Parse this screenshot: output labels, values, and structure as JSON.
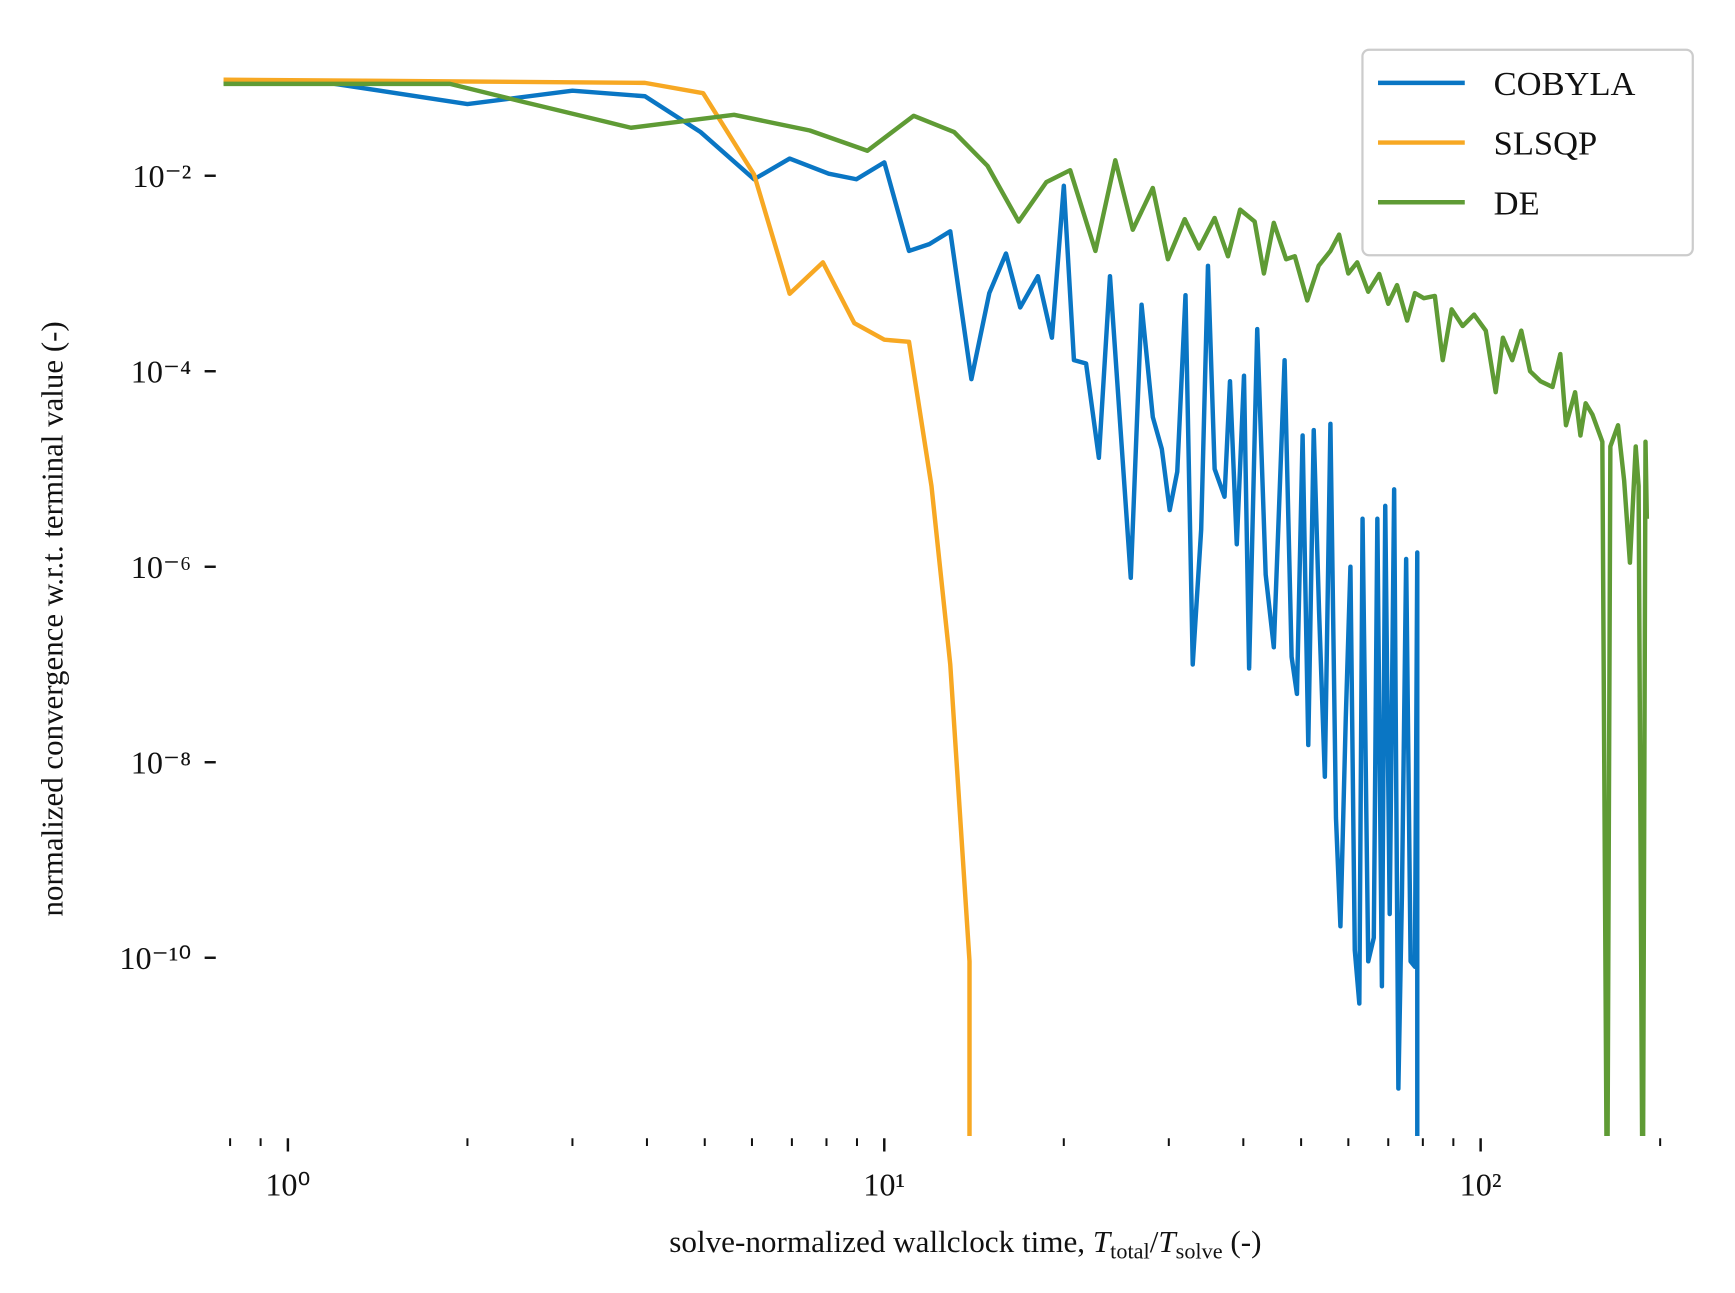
{
  "chart_data": {
    "type": "line",
    "ylabel": "normalized convergence w.r.t. terminal value (-)",
    "xlabel": [
      "solve-normalized wallclock time, ",
      "T",
      "total",
      "/",
      "T",
      "solve",
      " (-)"
    ],
    "xscale": "log",
    "yscale": "log",
    "grid": false,
    "legend": "upper right",
    "xlim": [
      0.78,
      202
    ],
    "ylim": [
      1.5e-12,
      0.125
    ],
    "xticks": [
      {
        "value": 1,
        "label": "10⁰"
      },
      {
        "value": 10,
        "label": "10¹"
      },
      {
        "value": 100,
        "label": "10²"
      }
    ],
    "xminorticks": [
      0.8,
      0.9,
      2,
      3,
      4,
      5,
      6,
      7,
      8,
      9,
      20,
      30,
      40,
      50,
      60,
      70,
      80,
      90,
      200
    ],
    "yticks": [
      {
        "value": 0.01,
        "label": "10⁻²"
      },
      {
        "value": 0.0001,
        "label": "10⁻⁴"
      },
      {
        "value": 1e-06,
        "label": "10⁻⁶"
      },
      {
        "value": 1e-08,
        "label": "10⁻⁸"
      },
      {
        "value": 1e-10,
        "label": "10⁻¹⁰"
      }
    ],
    "series": [
      {
        "name": "COBYLA",
        "color": "#0a76c4",
        "x": [
          0.78,
          1.17,
          2.0,
          3.0,
          3.97,
          4.92,
          6.05,
          6.94,
          8.07,
          8.98,
          10,
          11.0,
          11.9,
          12.9,
          14.0,
          15.0,
          16.0,
          16.9,
          18.1,
          19.1,
          20.0,
          20.8,
          21.8,
          22.9,
          23.9,
          25.9,
          27.0,
          28.2,
          29.2,
          30.1,
          31.0,
          32.0,
          32.9,
          34.0,
          34.9,
          35.8,
          37.2,
          38.0,
          39.0,
          40.1,
          40.9,
          42.2,
          43.6,
          45.0,
          46.9,
          48.2,
          49.2,
          50.3,
          51.4,
          52.5,
          53.6,
          54.8,
          56.0,
          57.2,
          58.2,
          59.4,
          60.5,
          61.5,
          62.6,
          63.4,
          64.8,
          66.2,
          67.1,
          68.3,
          69.2,
          70.4,
          71.6,
          72.8,
          73.8,
          75.0,
          76.3,
          77.6,
          78.3,
          78.3
        ],
        "values": [
          0.089,
          0.089,
          0.054,
          0.074,
          0.065,
          0.028,
          0.0092,
          0.015,
          0.0105,
          0.0092,
          0.0137,
          0.0017,
          0.002,
          0.0027,
          8.3e-05,
          0.00063,
          0.0016,
          0.00045,
          0.00094,
          0.00022,
          0.0079,
          0.00013,
          0.00012,
          1.3e-05,
          0.00094,
          7.7e-07,
          0.00048,
          3.4e-05,
          1.6e-05,
          3.8e-06,
          9.4e-06,
          0.0006,
          1e-07,
          2.4e-06,
          0.0012,
          1e-05,
          5.2e-06,
          7.9e-05,
          1.7e-06,
          9e-05,
          9.1e-08,
          0.00027,
          8.3e-07,
          1.5e-07,
          0.00013,
          1.2e-07,
          5e-08,
          2.2e-05,
          1.5e-08,
          2.5e-05,
          3.5e-07,
          7.1e-09,
          2.9e-05,
          2.7e-09,
          2.1e-10,
          2.8e-08,
          1e-06,
          1.2e-10,
          3.4e-11,
          3.1e-06,
          9.2e-11,
          1.6e-10,
          3.1e-06,
          5.1e-11,
          4.2e-06,
          2.8e-10,
          6.2e-06,
          4.6e-12,
          4.4e-10,
          1.2e-06,
          9.2e-11,
          8.1e-11,
          1.4e-06,
          1e-13
        ]
      },
      {
        "name": "SLSQP",
        "color": "#f7a823",
        "x": [
          0.78,
          3.97,
          4.97,
          6.05,
          6.94,
          7.89,
          8.91,
          10,
          11.0,
          12.0,
          12.9,
          13.9,
          13.9
        ],
        "values": [
          0.096,
          0.089,
          0.07,
          0.0103,
          0.00062,
          0.0013,
          0.00031,
          0.00021,
          0.0002,
          6.7e-06,
          1e-07,
          9.2e-11,
          1e-13
        ]
      },
      {
        "name": "DE",
        "color": "#5f9b35",
        "x": [
          0.78,
          1.87,
          2.48,
          3.76,
          5.6,
          7.5,
          9.37,
          11.2,
          13.1,
          14.9,
          16.8,
          18.7,
          20.5,
          22.6,
          24.4,
          26.1,
          28.2,
          29.9,
          31.9,
          33.7,
          35.8,
          37.7,
          39.5,
          41.8,
          43.3,
          45.0,
          47.2,
          48.8,
          51.2,
          53.5,
          56.0,
          57.9,
          60.0,
          62.1,
          64.8,
          67.6,
          70.0,
          72.4,
          75.3,
          77.6,
          80.3,
          83.8,
          86.4,
          89.4,
          93.3,
          97.5,
          102,
          106,
          109,
          113,
          117,
          121,
          126,
          132,
          136,
          139,
          144,
          147,
          150,
          154,
          160,
          163,
          165,
          170,
          174,
          178,
          182,
          184,
          187,
          189,
          190
        ],
        "values": [
          0.087,
          0.087,
          0.057,
          0.031,
          0.042,
          0.029,
          0.018,
          0.041,
          0.028,
          0.0126,
          0.0034,
          0.0086,
          0.0114,
          0.0017,
          0.0144,
          0.0028,
          0.0075,
          0.0014,
          0.0036,
          0.0018,
          0.0037,
          0.0015,
          0.0045,
          0.0034,
          0.001,
          0.0033,
          0.0014,
          0.0015,
          0.00053,
          0.0012,
          0.0017,
          0.0025,
          0.001,
          0.0013,
          0.00065,
          0.00099,
          0.00049,
          0.00076,
          0.00033,
          0.00063,
          0.00056,
          0.00059,
          0.00013,
          0.00043,
          0.00029,
          0.00038,
          0.00026,
          6.1e-05,
          0.00022,
          0.00013,
          0.00026,
          0.0001,
          7.9e-05,
          6.9e-05,
          0.00015,
          2.8e-05,
          6.1e-05,
          2.2e-05,
          4.7e-05,
          3.6e-05,
          1.9e-05,
          1e-13,
          1.7e-05,
          2.8e-05,
          7.6e-06,
          1.1e-06,
          1.7e-05,
          6.7e-06,
          1e-13,
          1.9e-05,
          3.1e-06
        ]
      }
    ]
  }
}
